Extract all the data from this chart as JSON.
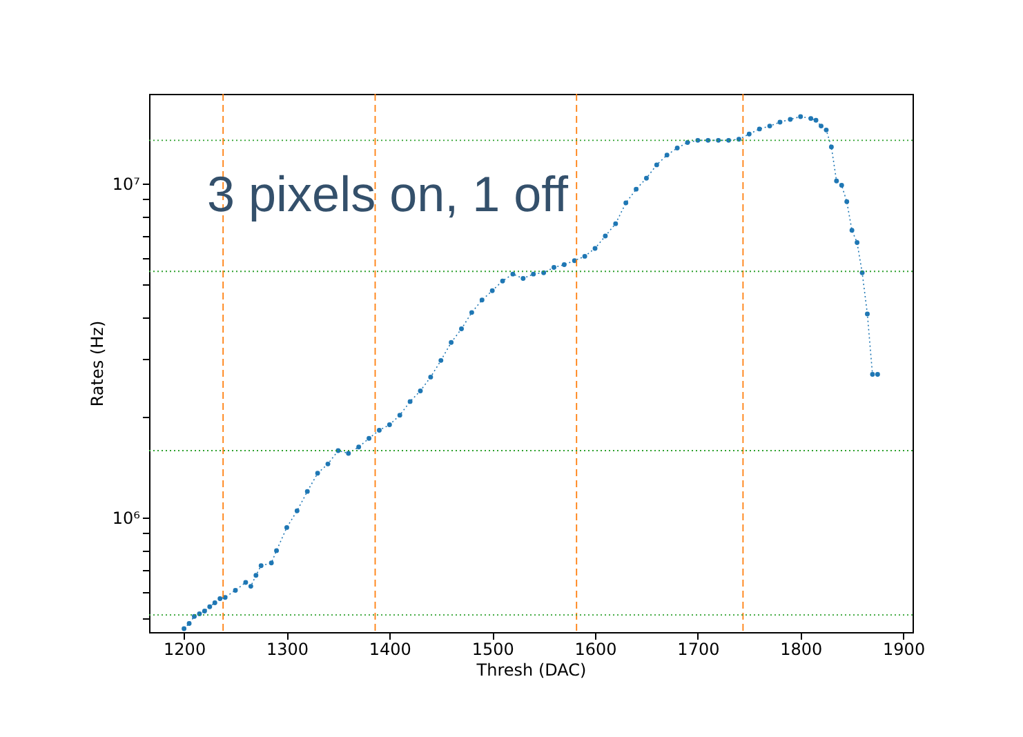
{
  "chart_data": {
    "type": "line",
    "xlabel": "Thresh (DAC)",
    "ylabel": "Rates (Hz)",
    "annotations": [
      "3 pixels on, 1 off"
    ],
    "log": "y",
    "grid": false,
    "marker": "circle",
    "line_style": "dotted",
    "xlim": [
      1166,
      1909
    ],
    "xticks": [
      1200,
      1300,
      1400,
      1500,
      1600,
      1700,
      1800,
      1900
    ],
    "ylim": [
      455000,
      18600000
    ],
    "yticks": [
      {
        "value": 500000,
        "label": null
      },
      {
        "value": 600000,
        "label": null
      },
      {
        "value": 700000,
        "label": null
      },
      {
        "value": 800000,
        "label": null
      },
      {
        "value": 900000,
        "label": null
      },
      {
        "value": 1000000,
        "label": "10⁶"
      },
      {
        "value": 2000000,
        "label": null
      },
      {
        "value": 3000000,
        "label": null
      },
      {
        "value": 4000000,
        "label": null
      },
      {
        "value": 5000000,
        "label": null
      },
      {
        "value": 6000000,
        "label": null
      },
      {
        "value": 7000000,
        "label": null
      },
      {
        "value": 8000000,
        "label": null
      },
      {
        "value": 9000000,
        "label": null
      },
      {
        "value": 10000000,
        "label": "10⁷"
      }
    ],
    "ref_lines": [
      {
        "axis": "x",
        "value": 1238,
        "color": "#ff7f0e",
        "line_style": "dashed"
      },
      {
        "axis": "x",
        "value": 1386,
        "color": "#ff7f0e",
        "line_style": "dashed"
      },
      {
        "axis": "x",
        "value": 1582,
        "color": "#ff7f0e",
        "line_style": "dashed"
      },
      {
        "axis": "x",
        "value": 1744,
        "color": "#ff7f0e",
        "line_style": "dashed"
      },
      {
        "axis": "y",
        "value": 512000,
        "color": "#2ca02c",
        "line_style": "dotted"
      },
      {
        "axis": "y",
        "value": 1590000,
        "color": "#2ca02c",
        "line_style": "dotted"
      },
      {
        "axis": "y",
        "value": 5470000,
        "color": "#2ca02c",
        "line_style": "dotted"
      },
      {
        "axis": "y",
        "value": 13500000,
        "color": "#2ca02c",
        "line_style": "dotted"
      }
    ],
    "series": [
      {
        "color": "#1f77b4",
        "x": [
          1200,
          1205,
          1210,
          1215,
          1220,
          1225,
          1230,
          1235,
          1240,
          1250,
          1260,
          1265,
          1270,
          1275,
          1285,
          1290,
          1300,
          1310,
          1320,
          1330,
          1340,
          1350,
          1360,
          1370,
          1380,
          1390,
          1400,
          1410,
          1420,
          1430,
          1440,
          1450,
          1460,
          1470,
          1480,
          1490,
          1500,
          1510,
          1520,
          1530,
          1540,
          1550,
          1560,
          1570,
          1580,
          1590,
          1600,
          1610,
          1620,
          1630,
          1640,
          1650,
          1660,
          1670,
          1680,
          1690,
          1700,
          1710,
          1720,
          1730,
          1740,
          1750,
          1760,
          1770,
          1780,
          1790,
          1800,
          1810,
          1815,
          1820,
          1825,
          1830,
          1835,
          1840,
          1845,
          1850,
          1855,
          1860,
          1865,
          1870,
          1875
        ],
        "values": [
          466000,
          483000,
          507000,
          516000,
          526000,
          542000,
          557000,
          573000,
          578000,
          607000,
          641000,
          624000,
          673000,
          719000,
          733000,
          798000,
          936000,
          1050000,
          1200000,
          1360000,
          1450000,
          1590000,
          1560000,
          1630000,
          1730000,
          1830000,
          1900000,
          2030000,
          2230000,
          2400000,
          2640000,
          2960000,
          3350000,
          3680000,
          4120000,
          4490000,
          4790000,
          5120000,
          5370000,
          5210000,
          5370000,
          5420000,
          5620000,
          5730000,
          5890000,
          6070000,
          6410000,
          6980000,
          7600000,
          8770000,
          9640000,
          10400000,
          11400000,
          12200000,
          12800000,
          13300000,
          13500000,
          13500000,
          13500000,
          13500000,
          13600000,
          14100000,
          14600000,
          14900000,
          15300000,
          15600000,
          15900000,
          15700000,
          15500000,
          14900000,
          14500000,
          12900000,
          10200000,
          9900000,
          8850000,
          7260000,
          6670000,
          5420000,
          4080000,
          2690000,
          2690000
        ]
      }
    ]
  }
}
